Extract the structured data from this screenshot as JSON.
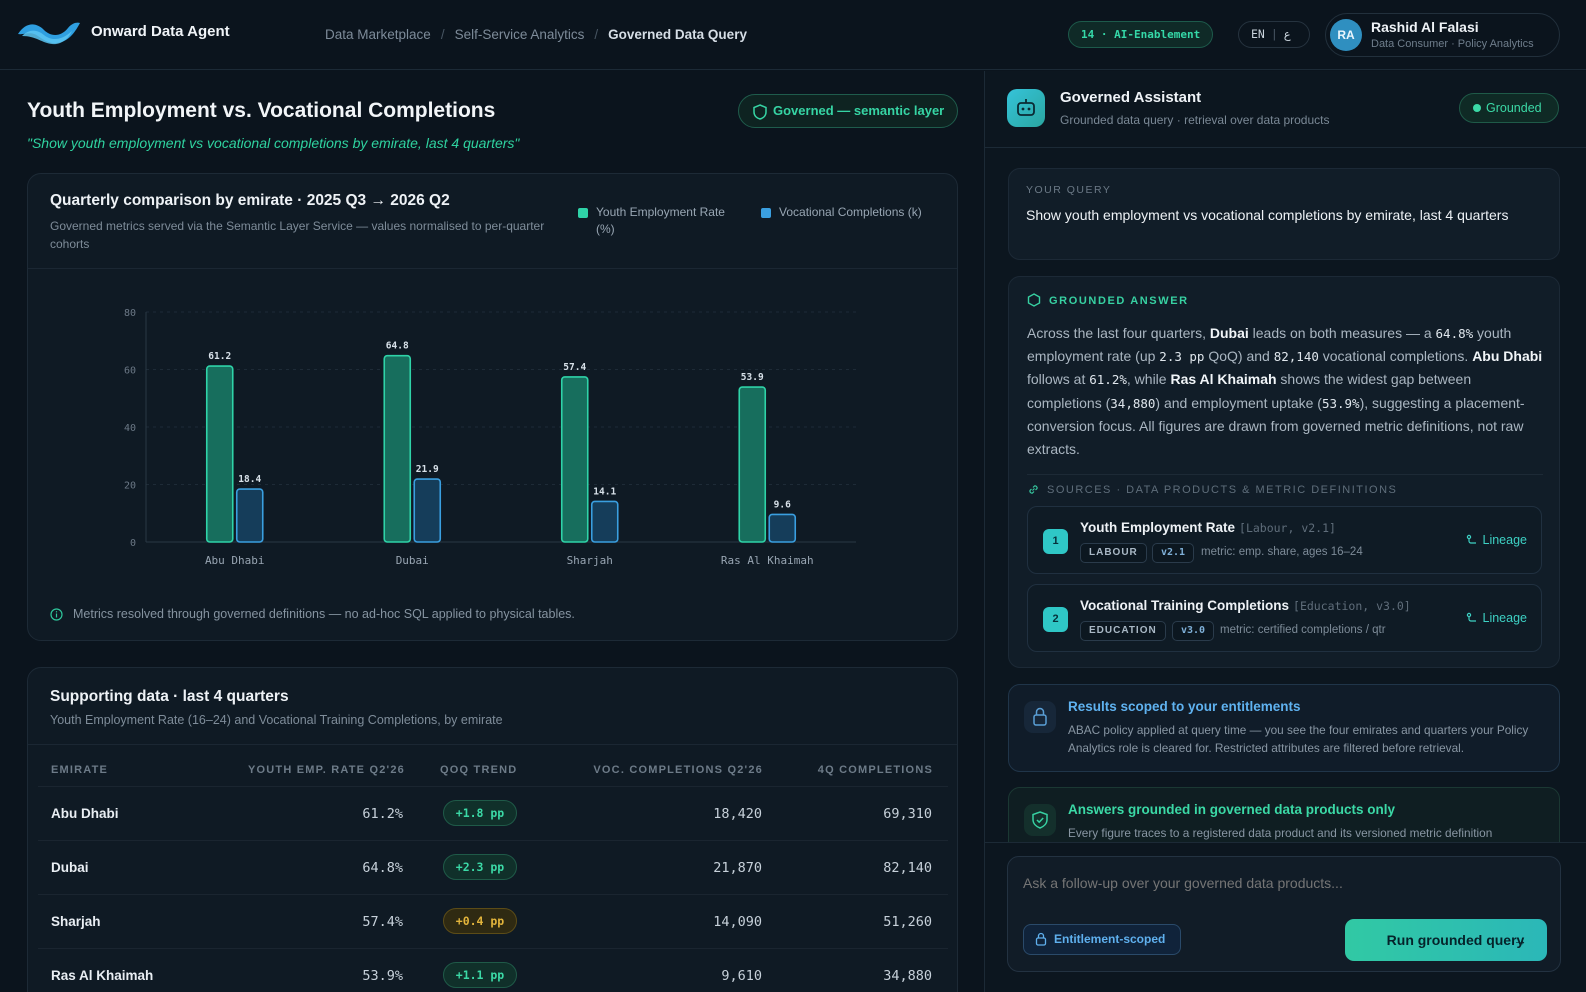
{
  "app": {
    "title": "Onward Data Agent"
  },
  "breadcrumbs": [
    "Data Marketplace",
    "Self-Service Analytics",
    "Governed Data Query"
  ],
  "header": {
    "ai_badge": "14 · AI-Enablement",
    "lang": "EN",
    "lang_alt": "ع",
    "user": {
      "initials": "RA",
      "name": "Rashid Al Falasi",
      "role": "Data Consumer · Policy Analytics"
    }
  },
  "main": {
    "title": "Youth Employment vs. Vocational Completions",
    "query_quote": "\"Show youth employment vs vocational completions by emirate, last 4 quarters\"",
    "governed_badge": "Governed — semantic layer"
  },
  "chart_card": {
    "title": "Quarterly comparison by emirate · 2025 Q3 → 2026 Q2",
    "subtitle": "Governed metrics served via the Semantic Layer Service — values normalised to per-quarter cohorts",
    "note": "Metrics resolved through governed definitions — no ad-hoc SQL applied to physical tables."
  },
  "chart_data": {
    "type": "bar",
    "categories": [
      "Abu Dhabi",
      "Dubai",
      "Sharjah",
      "Ras Al Khaimah"
    ],
    "series": [
      {
        "name": "Youth Employment Rate (%)",
        "values": [
          61.2,
          64.8,
          57.4,
          53.9
        ],
        "color": "#2fd3a8"
      },
      {
        "name": "Vocational Completions (k)",
        "values": [
          18.4,
          21.9,
          14.1,
          9.6
        ],
        "color": "#3a9fe0"
      }
    ],
    "ylim": [
      0,
      80
    ],
    "yticks": [
      0,
      20,
      40,
      60,
      80
    ],
    "grid": true,
    "legend": "top-right"
  },
  "table": {
    "title": "Supporting data · last 4 quarters",
    "subtitle": "Youth Employment Rate (16–24) and Vocational Training Completions, by emirate",
    "columns": [
      "EMIRATE",
      "YOUTH EMP. RATE Q2'26",
      "QOQ TREND",
      "VOC. COMPLETIONS Q2'26",
      "4Q COMPLETIONS"
    ],
    "rows": [
      {
        "emirate": "Abu Dhabi",
        "rate": "61.2%",
        "trend": "+1.8 pp",
        "trend_level": "up",
        "completions": "18,420",
        "total": "69,310"
      },
      {
        "emirate": "Dubai",
        "rate": "64.8%",
        "trend": "+2.3 pp",
        "trend_level": "up",
        "completions": "21,870",
        "total": "82,140"
      },
      {
        "emirate": "Sharjah",
        "rate": "57.4%",
        "trend": "+0.4 pp",
        "trend_level": "mid",
        "completions": "14,090",
        "total": "51,260"
      },
      {
        "emirate": "Ras Al Khaimah",
        "rate": "53.9%",
        "trend": "+1.1 pp",
        "trend_level": "up",
        "completions": "9,610",
        "total": "34,880"
      }
    ]
  },
  "assistant": {
    "name": "Governed Assistant",
    "subtitle": "Grounded data query · retrieval over data products",
    "status": "Grounded",
    "query_label": "YOUR QUERY",
    "query_text": "Show youth employment vs vocational completions by emirate, last 4 quarters",
    "answer_label": "GROUNDED ANSWER",
    "answer": {
      "t1": "Across the last four quarters, ",
      "b1": "Dubai",
      "t2": " leads on both measures — a ",
      "m1": "64.8%",
      "t3": " youth employment rate (up ",
      "m2": "2.3 pp",
      "t4": " QoQ) and ",
      "m3": "82,140",
      "t5": " vocational completions. ",
      "b2": "Abu Dhabi",
      "t6": " follows at ",
      "m4": "61.2%",
      "t7": ", while ",
      "b3": "Ras Al Khaimah",
      "t8": " shows the widest gap between completions (",
      "m5": "34,880",
      "t9": ") and employment uptake (",
      "m6": "53.9%",
      "t10": "), suggesting a placement-conversion focus. All figures are drawn from governed metric definitions, not raw extracts."
    },
    "sources_label": "SOURCES · DATA PRODUCTS & METRIC DEFINITIONS",
    "sources": [
      {
        "num": "1",
        "name": "Youth Employment Rate",
        "version_ref": "[Labour, v2.1]",
        "domain": "LABOUR",
        "version": "v2.1",
        "metric": "metric: emp. share, ages 16–24",
        "lineage": "Lineage"
      },
      {
        "num": "2",
        "name": "Vocational Training Completions",
        "version_ref": "[Education, v3.0]",
        "domain": "EDUCATION",
        "version": "v3.0",
        "metric": "metric: certified completions / qtr",
        "lineage": "Lineage"
      }
    ],
    "entitlements": {
      "title": "Results scoped to your entitlements",
      "text": "ABAC policy applied at query time — you see the four emirates and quarters your Policy Analytics role is cleared for. Restricted attributes are filtered before retrieval."
    },
    "grounding": {
      "title": "Answers grounded in governed data products only",
      "text": "Every figure traces to a registered data product and its versioned metric definition"
    },
    "composer": {
      "placeholder": "Ask a follow-up over your governed data products...",
      "scope_pill": "Entitlement-scoped",
      "run_label": "Run grounded query"
    }
  }
}
